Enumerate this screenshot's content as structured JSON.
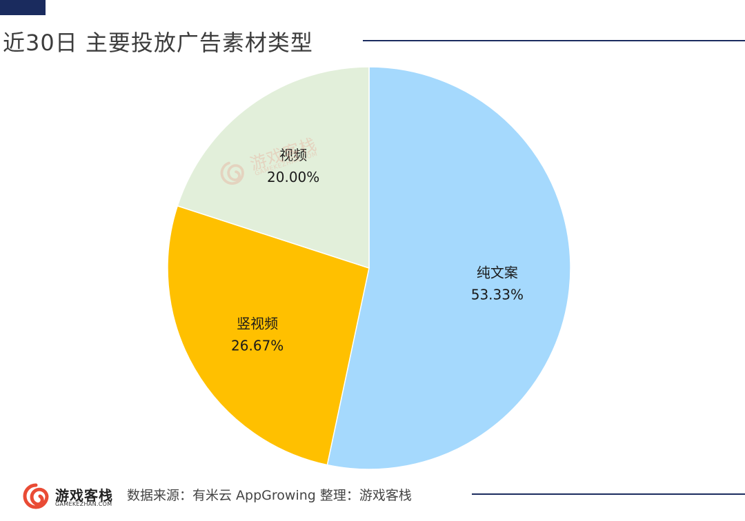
{
  "page": {
    "title": "近30日 主要投放广告素材类型"
  },
  "chart_data": {
    "type": "pie",
    "title": "近30日 主要投放广告素材类型",
    "start_angle": "top",
    "direction": "clockwise",
    "slices": [
      {
        "label": "纯文案",
        "value": 53.33,
        "value_label": "53.33%",
        "color": "#a5d9fd"
      },
      {
        "label": "竖视频",
        "value": 26.67,
        "value_label": "26.67%",
        "color": "#ffc000"
      },
      {
        "label": "视频",
        "value": 20.0,
        "value_label": "20.00%",
        "color": "#e2efda"
      }
    ]
  },
  "watermark": {
    "name": "游戏客栈",
    "domain": "GAMEKEZHAN.COM",
    "icon": "swirl-logo-icon"
  },
  "footer": {
    "brand": "游戏客栈",
    "domain": "GAMEKEZHAN.COM",
    "source": "数据来源：有米云 AppGrowing   整理：游戏客栈",
    "icon": "swirl-logo-icon",
    "accent_color": "#e94b35"
  },
  "colors": {
    "rule": "#1a2b5e"
  }
}
